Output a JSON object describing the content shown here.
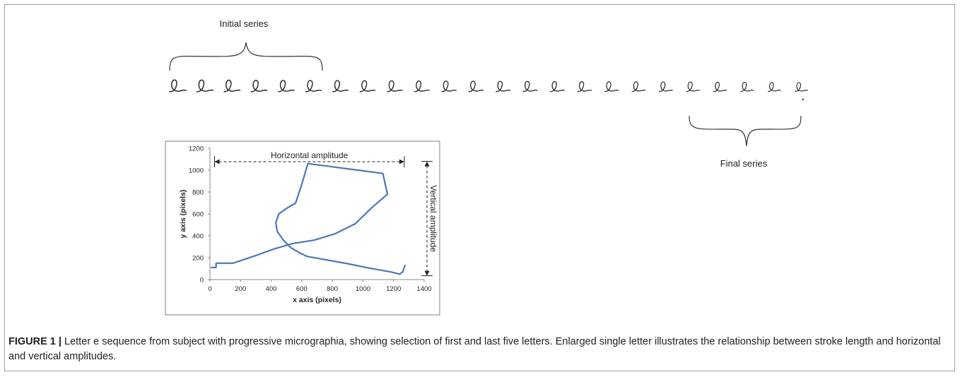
{
  "figure": {
    "label": "FIGURE 1 |",
    "caption": "Letter e sequence from subject with progressive micrographia, showing selection of first and last five letters. Enlarged single letter illustrates the relationship between stroke length and horizontal and vertical amplitudes.",
    "initial_series_label": "Initial series",
    "final_series_label": "Final series",
    "letter_count": 24
  },
  "chart_data": {
    "type": "line",
    "title": "",
    "xlabel": "x axis (pixels)",
    "ylabel": "y axis (pixels)",
    "xlim": [
      0,
      1400
    ],
    "ylim": [
      0,
      1200
    ],
    "x_ticks": [
      0,
      200,
      400,
      600,
      800,
      1000,
      1200,
      1400
    ],
    "y_ticks": [
      0,
      200,
      400,
      600,
      800,
      1000,
      1200
    ],
    "grid": false,
    "annotations": {
      "horizontal": "Horizontal amplitude",
      "vertical": "Vertical amplitude"
    },
    "series": [
      {
        "color": "#4a78b8",
        "x": [
          10,
          40,
          40,
          150,
          300,
          420,
          540,
          680,
          820,
          950,
          1060,
          1160,
          1130,
          640,
          600,
          560,
          500,
          450,
          430,
          440,
          480,
          530,
          580,
          590,
          610,
          620,
          630,
          640,
          760,
          900,
          1040,
          1180,
          1240,
          1260,
          1275
        ],
        "y": [
          110,
          110,
          150,
          150,
          220,
          280,
          330,
          360,
          420,
          510,
          660,
          780,
          970,
          1060,
          870,
          700,
          650,
          600,
          520,
          440,
          360,
          290,
          250,
          240,
          230,
          220,
          215,
          210,
          180,
          145,
          105,
          70,
          50,
          70,
          130
        ]
      }
    ]
  }
}
